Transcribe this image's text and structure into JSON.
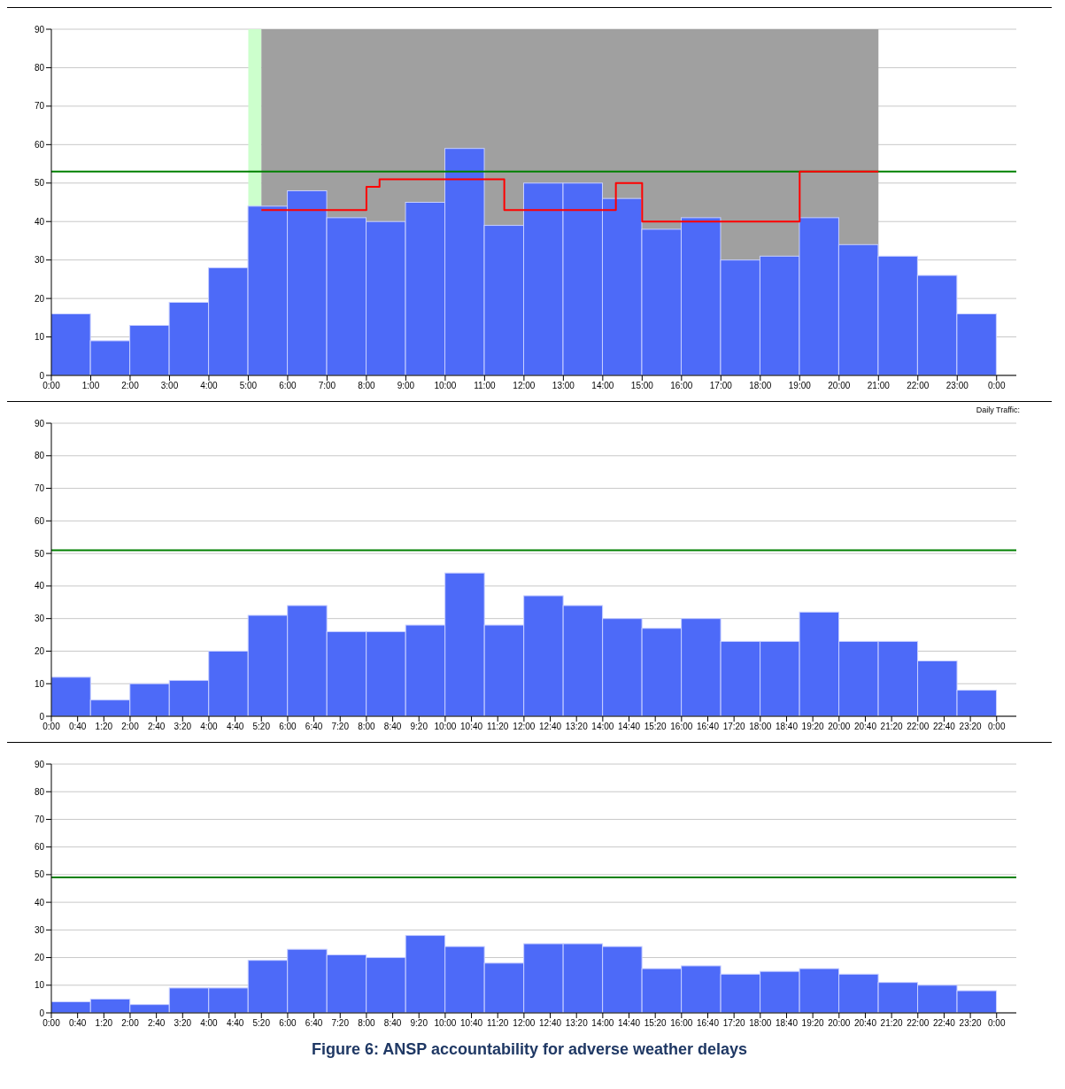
{
  "chart_data": [
    {
      "type": "histogram",
      "bins": [
        0,
        1,
        2,
        3,
        4,
        5,
        6,
        7,
        8,
        9,
        10,
        11,
        12,
        13,
        14,
        15,
        16,
        17,
        18,
        19,
        20,
        21,
        22,
        23,
        24
      ],
      "series": [
        {
          "color": "#4d6af8",
          "values": [
            16,
            9,
            13,
            19,
            28,
            44,
            48,
            41,
            40,
            45,
            59,
            39,
            50,
            50,
            46,
            38,
            41,
            30,
            31,
            41,
            34,
            31,
            26,
            16
          ]
        },
        {
          "type": "step",
          "color": "#ff0000",
          "x": [
            5.333,
            8,
            8.333,
            11.5,
            14.333,
            15,
            19,
            21
          ],
          "values": [
            43,
            49,
            51,
            43,
            50,
            40,
            53,
            53
          ]
        }
      ],
      "xlim": [
        0,
        24.5
      ],
      "ylim": [
        0,
        90
      ],
      "yticks": [
        0,
        10,
        20,
        30,
        40,
        50,
        60,
        70,
        80,
        90
      ],
      "xticks": [
        {
          "value": 0,
          "label": "0:00"
        },
        {
          "value": 1,
          "label": "1:00"
        },
        {
          "value": 2,
          "label": "2:00"
        },
        {
          "value": 3,
          "label": "3:00"
        },
        {
          "value": 4,
          "label": "4:00"
        },
        {
          "value": 5,
          "label": "5:00"
        },
        {
          "value": 6,
          "label": "6:00"
        },
        {
          "value": 7,
          "label": "7:00"
        },
        {
          "value": 8,
          "label": "8:00"
        },
        {
          "value": 9,
          "label": "9:00"
        },
        {
          "value": 10,
          "label": "10:00"
        },
        {
          "value": 11,
          "label": "11:00"
        },
        {
          "value": 12,
          "label": "12:00"
        },
        {
          "value": 13,
          "label": "13:00"
        },
        {
          "value": 14,
          "label": "14:00"
        },
        {
          "value": 15,
          "label": "15:00"
        },
        {
          "value": 16,
          "label": "16:00"
        },
        {
          "value": 17,
          "label": "17:00"
        },
        {
          "value": 18,
          "label": "18:00"
        },
        {
          "value": 19,
          "label": "19:00"
        },
        {
          "value": 20,
          "label": "20:00"
        },
        {
          "value": 21,
          "label": "21:00"
        },
        {
          "value": 22,
          "label": "22:00"
        },
        {
          "value": 23,
          "label": "23:00"
        },
        {
          "value": 24,
          "label": "0:00"
        }
      ],
      "ref_lines": [
        {
          "axis": "y",
          "value": 53,
          "color": "#008000"
        }
      ],
      "bands": [
        {
          "axis": "x",
          "from": 5,
          "to": 5.333,
          "color": "#ccffcc"
        },
        {
          "axis": "x",
          "from": 5.333,
          "to": 21,
          "color": "#a0a0a0"
        }
      ],
      "grid": "y"
    },
    {
      "type": "histogram",
      "bins": [
        0,
        1,
        2,
        3,
        4,
        5,
        6,
        7,
        8,
        9,
        10,
        11,
        12,
        13,
        14,
        15,
        16,
        17,
        18,
        19,
        20,
        21,
        22,
        23,
        24
      ],
      "values": [
        12,
        5,
        10,
        11,
        20,
        31,
        34,
        26,
        26,
        28,
        44,
        28,
        37,
        34,
        30,
        27,
        30,
        23,
        23,
        32,
        23,
        23,
        17,
        8
      ],
      "color": "#4d6af8",
      "xlim": [
        0,
        24.5
      ],
      "ylim": [
        0,
        90
      ],
      "yticks": [
        0,
        10,
        20,
        30,
        40,
        50,
        60,
        70,
        80,
        90
      ],
      "xticks": [
        {
          "value": 0,
          "label": "0:00"
        },
        {
          "value": 0.6667,
          "label": "0:40"
        },
        {
          "value": 1.3333,
          "label": "1:20"
        },
        {
          "value": 2,
          "label": "2:00"
        },
        {
          "value": 2.6667,
          "label": "2:40"
        },
        {
          "value": 3.3333,
          "label": "3:20"
        },
        {
          "value": 4,
          "label": "4:00"
        },
        {
          "value": 4.6667,
          "label": "4:40"
        },
        {
          "value": 5.3333,
          "label": "5:20"
        },
        {
          "value": 6,
          "label": "6:00"
        },
        {
          "value": 6.6667,
          "label": "6:40"
        },
        {
          "value": 7.3333,
          "label": "7:20"
        },
        {
          "value": 8,
          "label": "8:00"
        },
        {
          "value": 8.6667,
          "label": "8:40"
        },
        {
          "value": 9.3333,
          "label": "9:20"
        },
        {
          "value": 10,
          "label": "10:00"
        },
        {
          "value": 10.6667,
          "label": "10:40"
        },
        {
          "value": 11.3333,
          "label": "11:20"
        },
        {
          "value": 12,
          "label": "12:00"
        },
        {
          "value": 12.6667,
          "label": "12:40"
        },
        {
          "value": 13.3333,
          "label": "13:20"
        },
        {
          "value": 14,
          "label": "14:00"
        },
        {
          "value": 14.6667,
          "label": "14:40"
        },
        {
          "value": 15.3333,
          "label": "15:20"
        },
        {
          "value": 16,
          "label": "16:00"
        },
        {
          "value": 16.6667,
          "label": "16:40"
        },
        {
          "value": 17.3333,
          "label": "17:20"
        },
        {
          "value": 18,
          "label": "18:00"
        },
        {
          "value": 18.6667,
          "label": "18:40"
        },
        {
          "value": 19.3333,
          "label": "19:20"
        },
        {
          "value": 20,
          "label": "20:00"
        },
        {
          "value": 20.6667,
          "label": "20:40"
        },
        {
          "value": 21.3333,
          "label": "21:20"
        },
        {
          "value": 22,
          "label": "22:00"
        },
        {
          "value": 22.6667,
          "label": "22:40"
        },
        {
          "value": 23.3333,
          "label": "23:20"
        },
        {
          "value": 24,
          "label": "0:00"
        }
      ],
      "ref_lines": [
        {
          "axis": "y",
          "value": 51,
          "color": "#008000"
        }
      ],
      "annotations": [
        "Daily Traffic:"
      ],
      "grid": "y"
    },
    {
      "type": "histogram",
      "bins": [
        0,
        1,
        2,
        3,
        4,
        5,
        6,
        7,
        8,
        9,
        10,
        11,
        12,
        13,
        14,
        15,
        16,
        17,
        18,
        19,
        20,
        21,
        22,
        23,
        24
      ],
      "values": [
        4,
        5,
        3,
        9,
        9,
        19,
        23,
        21,
        20,
        28,
        24,
        18,
        25,
        25,
        24,
        16,
        17,
        14,
        15,
        16,
        14,
        11,
        10,
        8
      ],
      "color": "#4d6af8",
      "xlim": [
        0,
        24.5
      ],
      "ylim": [
        0,
        90
      ],
      "yticks": [
        0,
        10,
        20,
        30,
        40,
        50,
        60,
        70,
        80,
        90
      ],
      "xticks": [
        {
          "value": 0,
          "label": "0:00"
        },
        {
          "value": 0.6667,
          "label": "0:40"
        },
        {
          "value": 1.3333,
          "label": "1:20"
        },
        {
          "value": 2,
          "label": "2:00"
        },
        {
          "value": 2.6667,
          "label": "2:40"
        },
        {
          "value": 3.3333,
          "label": "3:20"
        },
        {
          "value": 4,
          "label": "4:00"
        },
        {
          "value": 4.6667,
          "label": "4:40"
        },
        {
          "value": 5.3333,
          "label": "5:20"
        },
        {
          "value": 6,
          "label": "6:00"
        },
        {
          "value": 6.6667,
          "label": "6:40"
        },
        {
          "value": 7.3333,
          "label": "7:20"
        },
        {
          "value": 8,
          "label": "8:00"
        },
        {
          "value": 8.6667,
          "label": "8:40"
        },
        {
          "value": 9.3333,
          "label": "9:20"
        },
        {
          "value": 10,
          "label": "10:00"
        },
        {
          "value": 10.6667,
          "label": "10:40"
        },
        {
          "value": 11.3333,
          "label": "11:20"
        },
        {
          "value": 12,
          "label": "12:00"
        },
        {
          "value": 12.6667,
          "label": "12:40"
        },
        {
          "value": 13.3333,
          "label": "13:20"
        },
        {
          "value": 14,
          "label": "14:00"
        },
        {
          "value": 14.6667,
          "label": "14:40"
        },
        {
          "value": 15.3333,
          "label": "15:20"
        },
        {
          "value": 16,
          "label": "16:00"
        },
        {
          "value": 16.6667,
          "label": "16:40"
        },
        {
          "value": 17.3333,
          "label": "17:20"
        },
        {
          "value": 18,
          "label": "18:00"
        },
        {
          "value": 18.6667,
          "label": "18:40"
        },
        {
          "value": 19.3333,
          "label": "19:20"
        },
        {
          "value": 20,
          "label": "20:00"
        },
        {
          "value": 20.6667,
          "label": "20:40"
        },
        {
          "value": 21.3333,
          "label": "21:20"
        },
        {
          "value": 22,
          "label": "22:00"
        },
        {
          "value": 22.6667,
          "label": "22:40"
        },
        {
          "value": 23.3333,
          "label": "23:20"
        },
        {
          "value": 24,
          "label": "0:00"
        }
      ],
      "ref_lines": [
        {
          "axis": "y",
          "value": 49,
          "color": "#008000"
        }
      ],
      "annotations": [
        "Figure 6: ANSP accountability for adverse weather delays"
      ],
      "grid": "y"
    }
  ]
}
